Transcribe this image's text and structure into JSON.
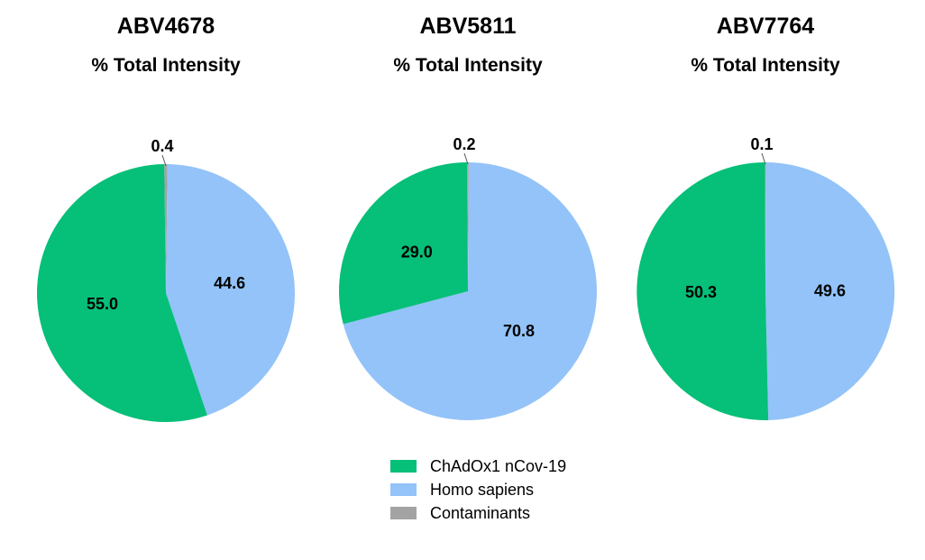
{
  "colors": {
    "chadox": "#06bf78",
    "homo": "#93c3f8",
    "contaminants": "#a3a3a3"
  },
  "legend": [
    {
      "label": "ChAdOx1 nCov-19",
      "color": "#06bf78"
    },
    {
      "label": "Homo sapiens",
      "color": "#93c3f8"
    },
    {
      "label": "Contaminants",
      "color": "#a3a3a3"
    }
  ],
  "chart_data": [
    {
      "type": "pie",
      "title": "ABV4678",
      "subtitle": "% Total Intensity",
      "slices": [
        {
          "name": "Contaminants",
          "value": 0.4,
          "label": "0.4"
        },
        {
          "name": "Homo sapiens",
          "value": 44.6,
          "label": "44.6"
        },
        {
          "name": "ChAdOx1 nCov-19",
          "value": 55.0,
          "label": "55.0"
        }
      ]
    },
    {
      "type": "pie",
      "title": "ABV5811",
      "subtitle": "% Total Intensity",
      "slices": [
        {
          "name": "Contaminants",
          "value": 0.2,
          "label": "0.2"
        },
        {
          "name": "Homo sapiens",
          "value": 70.8,
          "label": "70.8"
        },
        {
          "name": "ChAdOx1 nCov-19",
          "value": 29.0,
          "label": "29.0"
        }
      ]
    },
    {
      "type": "pie",
      "title": "ABV7764",
      "subtitle": "% Total Intensity",
      "slices": [
        {
          "name": "Contaminants",
          "value": 0.1,
          "label": "0.1"
        },
        {
          "name": "Homo sapiens",
          "value": 49.6,
          "label": "49.6"
        },
        {
          "name": "ChAdOx1 nCov-19",
          "value": 50.3,
          "label": "50.3"
        }
      ]
    }
  ]
}
